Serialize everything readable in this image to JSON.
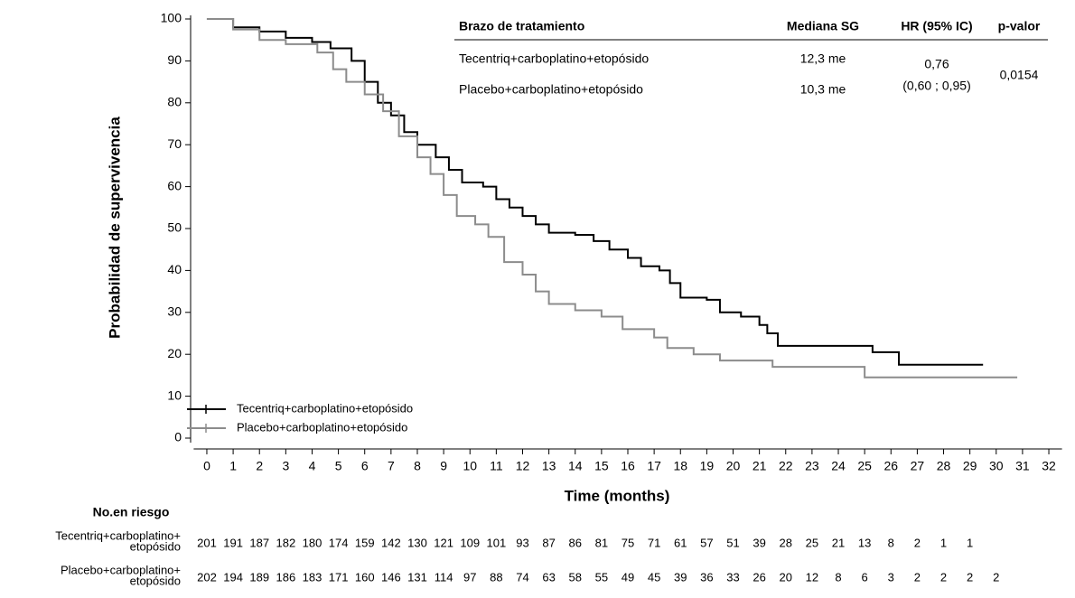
{
  "chart_data": {
    "type": "line",
    "step": true,
    "xlabel": "Time (months)",
    "ylabel": "Probabilidad de supervivencia",
    "xlim": [
      -0.5,
      32.5
    ],
    "xticks": [
      0,
      1,
      2,
      3,
      4,
      5,
      6,
      7,
      8,
      9,
      10,
      11,
      12,
      13,
      14,
      15,
      16,
      17,
      18,
      19,
      20,
      21,
      22,
      23,
      24,
      25,
      26,
      27,
      28,
      29,
      30,
      31,
      32
    ],
    "ylim": [
      0,
      100
    ],
    "yticks": [
      0,
      10,
      20,
      30,
      40,
      50,
      60,
      70,
      80,
      90,
      100
    ],
    "legend": "lower left",
    "series": [
      {
        "name": "Tecentriq+carboplatino+etopósido",
        "color": "#000000",
        "x": [
          0,
          1,
          2,
          3,
          4,
          4.7,
          5.5,
          6,
          6.5,
          7,
          7.5,
          8,
          8.7,
          9.2,
          9.7,
          10.5,
          11,
          11.5,
          12,
          12.5,
          13,
          14,
          14.7,
          15.3,
          16,
          16.5,
          17.2,
          17.6,
          18,
          19,
          19.5,
          20.3,
          21,
          21.3,
          21.7,
          25,
          25.3,
          26.3,
          29.5
        ],
        "values": [
          100,
          98,
          97,
          95.5,
          94.5,
          93,
          90,
          85,
          80,
          77,
          73,
          70,
          67,
          64,
          61,
          60,
          57,
          55,
          53,
          51,
          49,
          48.5,
          47,
          45,
          43,
          41,
          40,
          37,
          33.5,
          33,
          30,
          29,
          27,
          25,
          22,
          22,
          20.5,
          17.5,
          17.5
        ]
      },
      {
        "name": "Placebo+carboplatino+etopósido",
        "color": "#8c8c8c",
        "x": [
          0,
          1,
          2,
          3,
          4.2,
          4.8,
          5.3,
          6,
          6.7,
          7.3,
          8,
          8.5,
          9,
          9.5,
          10.2,
          10.7,
          11.3,
          12,
          12.5,
          13,
          14,
          15,
          15.8,
          17,
          17.5,
          18.5,
          19.5,
          21,
          21.5,
          24.8,
          25,
          30.8
        ],
        "values": [
          100,
          97.5,
          95,
          94,
          92,
          88,
          85,
          82,
          78,
          72,
          67,
          63,
          58,
          53,
          51,
          48,
          42,
          39,
          35,
          32,
          30.5,
          29,
          26,
          24,
          21.5,
          20,
          18.5,
          18.5,
          17,
          17,
          14.5,
          14.5
        ]
      }
    ],
    "summary_table": {
      "header": [
        "Brazo de tratamiento",
        "Mediana SG",
        "HR (95% IC)",
        "p-valor"
      ],
      "rows": [
        [
          "Tecentriq+carboplatino+etopósido",
          "12,3 me"
        ],
        [
          "Placebo+carboplatino+etopósido",
          "10,3 me"
        ]
      ],
      "hr": "0,76",
      "hr_ci": "(0,60 ; 0,95)",
      "p_value": "0,0154"
    },
    "risk_table": {
      "title": "No.en riesgo",
      "rows": [
        {
          "label": [
            "Tecentriq+carboplatino+",
            "etopósido"
          ],
          "counts": [
            201,
            191,
            187,
            182,
            180,
            174,
            159,
            142,
            130,
            121,
            109,
            101,
            93,
            87,
            86,
            81,
            75,
            71,
            61,
            57,
            51,
            39,
            28,
            25,
            21,
            13,
            8,
            2,
            1,
            1
          ]
        },
        {
          "label": [
            "Placebo+carboplatino+",
            "etopósido"
          ],
          "counts": [
            202,
            194,
            189,
            186,
            183,
            171,
            160,
            146,
            131,
            114,
            97,
            88,
            74,
            63,
            58,
            55,
            49,
            45,
            39,
            36,
            33,
            26,
            20,
            12,
            8,
            6,
            3,
            2,
            2,
            2,
            2
          ]
        }
      ]
    }
  }
}
